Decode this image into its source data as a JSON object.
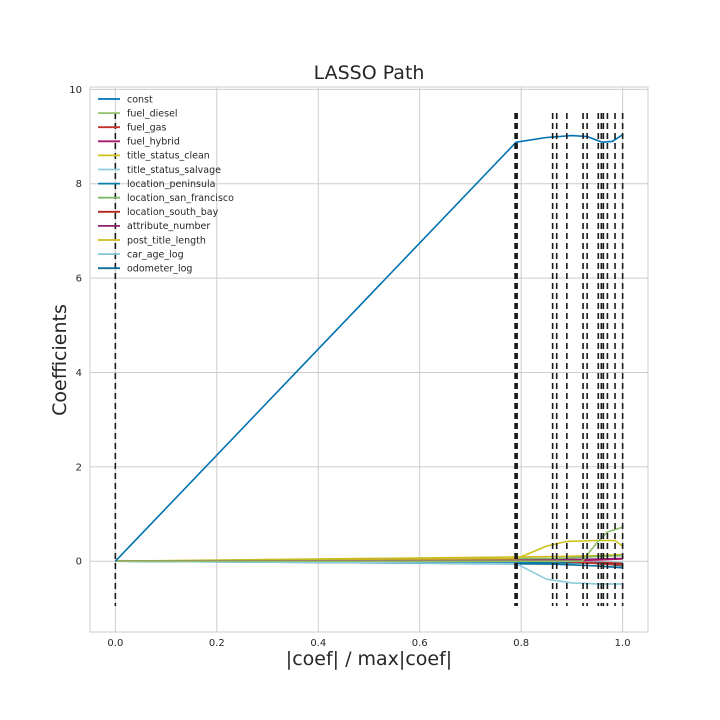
{
  "chart_data": {
    "type": "line",
    "title": "LASSO Path",
    "xlabel": "|coef| / max|coef|",
    "ylabel": "Coefficients",
    "xlim": [
      -0.05,
      1.05
    ],
    "ylim": [
      -1.5,
      10.05
    ],
    "xticks": [
      0.0,
      0.2,
      0.4,
      0.6,
      0.8,
      1.0
    ],
    "xtick_labels": [
      "0.0",
      "0.2",
      "0.4",
      "0.6",
      "0.8",
      "1.0"
    ],
    "yticks": [
      0,
      2,
      4,
      6,
      8,
      10
    ],
    "ytick_labels": [
      "0",
      "2",
      "4",
      "6",
      "8",
      "10"
    ],
    "grid": true,
    "legend_position": "top-left",
    "vlines": {
      "x": [
        0.0,
        0.788,
        0.79,
        0.792,
        0.862,
        0.87,
        0.89,
        0.922,
        0.93,
        0.952,
        0.958,
        0.962,
        0.97,
        0.985,
        1.0
      ],
      "ymin": -0.95,
      "ymax": 9.5,
      "style": "dashed",
      "color": "#1a1a1a"
    },
    "series": [
      {
        "name": "const",
        "color": "#0072B2",
        "x": [
          0.0,
          0.79,
          0.85,
          0.9,
          0.93,
          0.96,
          0.98,
          1.0
        ],
        "y": [
          0.0,
          8.88,
          8.98,
          9.02,
          9.0,
          8.88,
          8.9,
          9.04
        ]
      },
      {
        "name": "fuel_diesel",
        "color": "#8FC06A",
        "x": [
          0.0,
          0.92,
          0.95,
          0.97,
          1.0
        ],
        "y": [
          0.0,
          0.0,
          0.4,
          0.62,
          0.72
        ]
      },
      {
        "name": "fuel_gas",
        "color": "#C4302B",
        "x": [
          0.0,
          0.88,
          0.95,
          1.0
        ],
        "y": [
          0.0,
          0.0,
          -0.05,
          -0.08
        ]
      },
      {
        "name": "fuel_hybrid",
        "color": "#A8176B",
        "x": [
          0.0,
          0.93,
          1.0
        ],
        "y": [
          0.0,
          0.02,
          0.05
        ]
      },
      {
        "name": "title_status_clean",
        "color": "#CCC21B",
        "x": [
          0.0,
          0.79,
          0.85,
          0.89,
          0.95,
          0.985,
          1.0
        ],
        "y": [
          0.0,
          0.05,
          0.32,
          0.42,
          0.44,
          0.44,
          0.32
        ]
      },
      {
        "name": "title_status_salvage",
        "color": "#8CCBDB",
        "x": [
          0.0,
          0.79,
          0.85,
          0.9,
          0.95,
          1.0
        ],
        "y": [
          0.0,
          -0.05,
          -0.38,
          -0.46,
          -0.48,
          -0.48
        ]
      },
      {
        "name": "location_peninsula",
        "color": "#0A7FA8",
        "x": [
          0.0,
          0.95,
          1.0
        ],
        "y": [
          0.0,
          -0.04,
          -0.1
        ]
      },
      {
        "name": "location_san_francisco",
        "color": "#7CB96A",
        "x": [
          0.0,
          0.87,
          0.95,
          1.0
        ],
        "y": [
          0.0,
          0.06,
          0.1,
          0.12
        ]
      },
      {
        "name": "location_south_bay",
        "color": "#B5241D",
        "x": [
          0.0,
          0.96,
          1.0
        ],
        "y": [
          0.0,
          -0.03,
          -0.05
        ]
      },
      {
        "name": "attribute_number",
        "color": "#8C1F6E",
        "x": [
          0.0,
          0.93,
          1.0
        ],
        "y": [
          0.0,
          0.04,
          0.06
        ]
      },
      {
        "name": "post_title_length",
        "color": "#D1BA18",
        "x": [
          0.0,
          0.87,
          0.95,
          1.0
        ],
        "y": [
          0.0,
          0.1,
          0.12,
          0.14
        ]
      },
      {
        "name": "car_age_log",
        "color": "#80C5D6",
        "x": [
          0.0,
          0.96,
          1.0
        ],
        "y": [
          0.0,
          -0.02,
          -0.03
        ]
      },
      {
        "name": "odometer_log",
        "color": "#0E6E9A",
        "x": [
          0.0,
          0.86,
          0.95,
          1.0
        ],
        "y": [
          0.0,
          -0.06,
          -0.1,
          -0.14
        ]
      }
    ]
  }
}
